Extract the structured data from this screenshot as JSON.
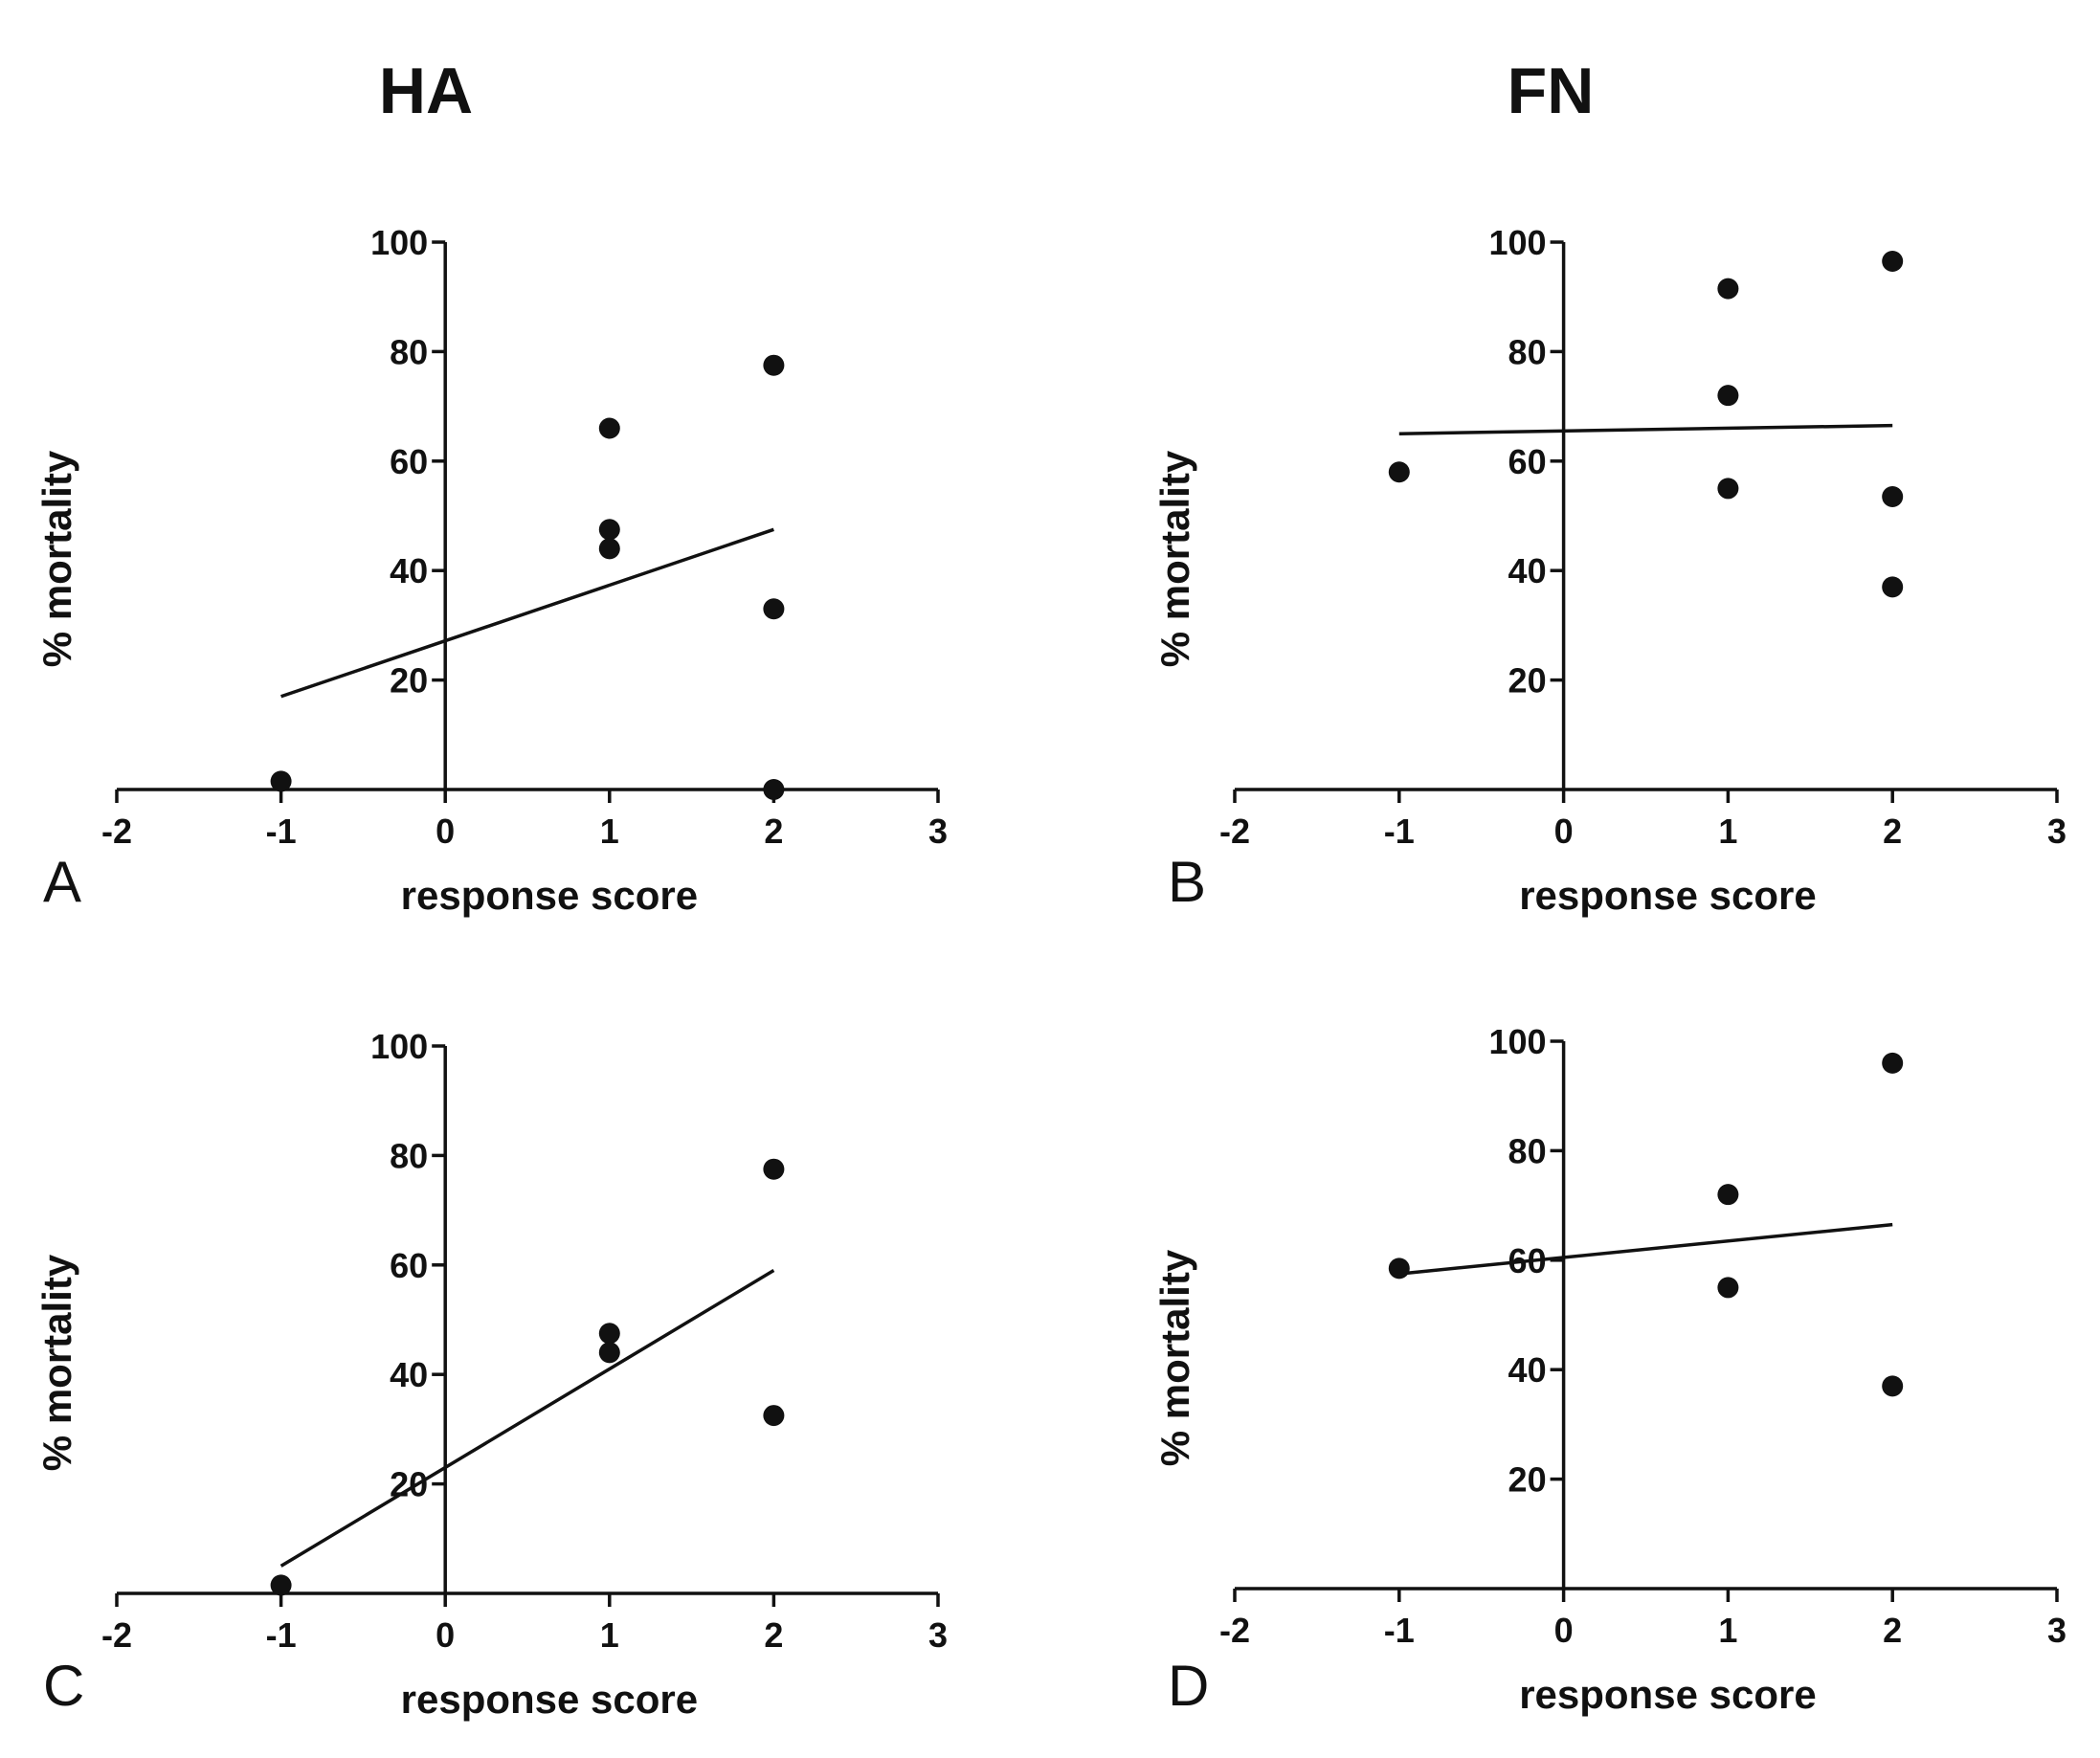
{
  "column_titles": [
    "HA",
    "FN"
  ],
  "chart_data": [
    {
      "type": "scatter",
      "panel": "A",
      "column": "HA",
      "xlabel": "response score",
      "ylabel": "% mortality",
      "xlim": [
        -2,
        3
      ],
      "ylim": [
        0,
        100
      ],
      "xticks": [
        -2,
        -1,
        0,
        1,
        2,
        3
      ],
      "yticks": [
        20,
        40,
        60,
        80,
        100
      ],
      "points": [
        [
          -1,
          1.5
        ],
        [
          1,
          66
        ],
        [
          1,
          47.5
        ],
        [
          1,
          44
        ],
        [
          2,
          77.5
        ],
        [
          2,
          33
        ],
        [
          2,
          0
        ]
      ],
      "fit_line": [
        [
          -1,
          17
        ],
        [
          2,
          47.5
        ]
      ]
    },
    {
      "type": "scatter",
      "panel": "B",
      "column": "FN",
      "xlabel": "response score",
      "ylabel": "% mortality",
      "xlim": [
        -2,
        3
      ],
      "ylim": [
        0,
        100
      ],
      "xticks": [
        -2,
        -1,
        0,
        1,
        2,
        3
      ],
      "yticks": [
        20,
        40,
        60,
        80,
        100
      ],
      "points": [
        [
          -1,
          58
        ],
        [
          1,
          91.5
        ],
        [
          1,
          72
        ],
        [
          1,
          55
        ],
        [
          2,
          96.5
        ],
        [
          2,
          53.5
        ],
        [
          2,
          37
        ]
      ],
      "fit_line": [
        [
          -1,
          65
        ],
        [
          2,
          66.5
        ]
      ]
    },
    {
      "type": "scatter",
      "panel": "C",
      "column": "HA",
      "xlabel": "response score",
      "ylabel": "% mortality",
      "xlim": [
        -2,
        3
      ],
      "ylim": [
        0,
        100
      ],
      "xticks": [
        -2,
        -1,
        0,
        1,
        2,
        3
      ],
      "yticks": [
        20,
        40,
        60,
        80,
        100
      ],
      "points": [
        [
          -1,
          1.5
        ],
        [
          1,
          47.5
        ],
        [
          1,
          44
        ],
        [
          2,
          77.5
        ],
        [
          2,
          32.5
        ]
      ],
      "fit_line": [
        [
          -1,
          5
        ],
        [
          2,
          59
        ]
      ]
    },
    {
      "type": "scatter",
      "panel": "D",
      "column": "FN",
      "xlabel": "response score",
      "ylabel": "% mortality",
      "xlim": [
        -2,
        3
      ],
      "ylim": [
        0,
        100
      ],
      "xticks": [
        -2,
        -1,
        0,
        1,
        2,
        3
      ],
      "yticks": [
        20,
        40,
        60,
        80,
        100
      ],
      "points": [
        [
          -1,
          58.5
        ],
        [
          1,
          72
        ],
        [
          1,
          55
        ],
        [
          2,
          96
        ],
        [
          2,
          37
        ]
      ],
      "fit_line": [
        [
          -1,
          57.5
        ],
        [
          2,
          66.5
        ]
      ]
    }
  ],
  "colors": {
    "ink": "#111111",
    "background": "#ffffff"
  }
}
